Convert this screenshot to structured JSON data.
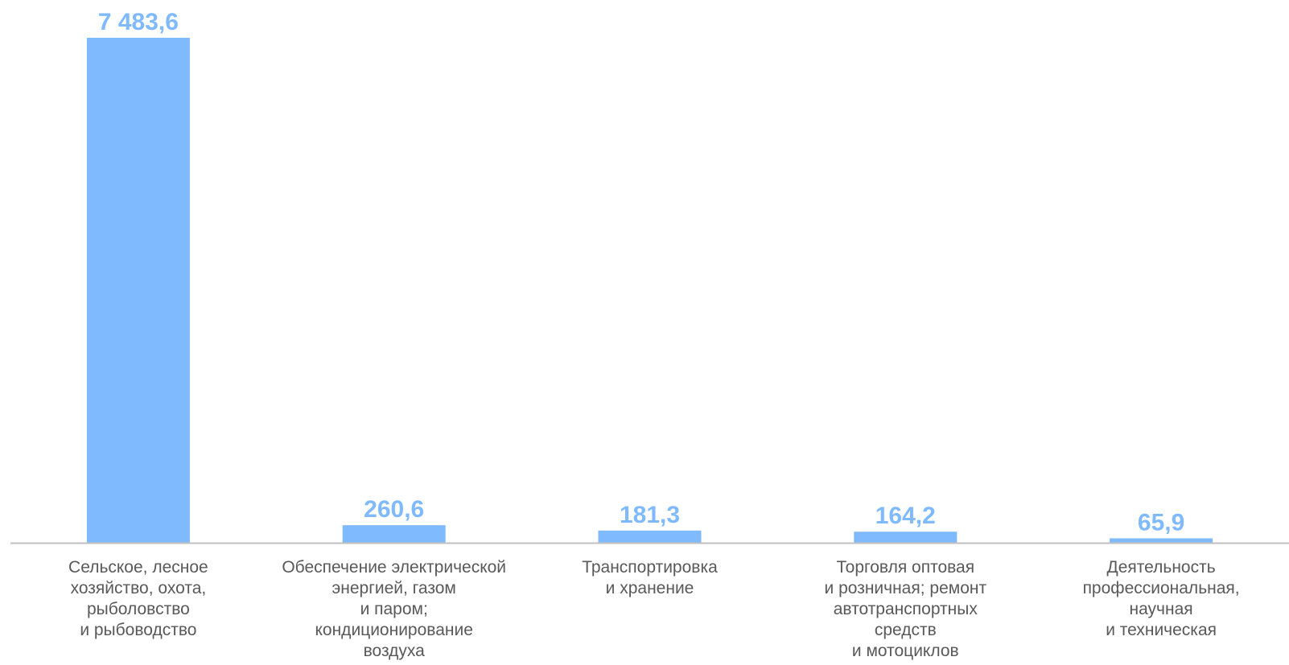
{
  "chart_data": {
    "type": "bar",
    "title": "",
    "xlabel": "",
    "ylabel": "",
    "categories": [
      [
        "Сельское, лесное",
        "хозяйство, охота,",
        "рыболовство",
        "и рыбоводство"
      ],
      [
        "Обеспечение электрической",
        "энергией, газом",
        "и паром;",
        "кондиционирование",
        "воздуха"
      ],
      [
        "Транспортировка",
        "и хранение"
      ],
      [
        "Торговля оптовая",
        "и розничная; ремонт",
        "автотранспортных",
        "средств",
        "и мотоциклов"
      ],
      [
        "Деятельность",
        "профессиональная,",
        "научная",
        "и техническая"
      ]
    ],
    "values": [
      7483.6,
      260.6,
      181.3,
      164.2,
      65.9
    ],
    "value_labels": [
      "7 483,6",
      "260,6",
      "181,3",
      "164,2",
      "65,9"
    ],
    "ylim": [
      0,
      7483.6
    ],
    "grid": false,
    "legend": "none",
    "bar_color": "#7fbaff",
    "label_color": "#7fbaff",
    "axis_color": "#c0c0c0",
    "category_text_color": "#595959"
  }
}
